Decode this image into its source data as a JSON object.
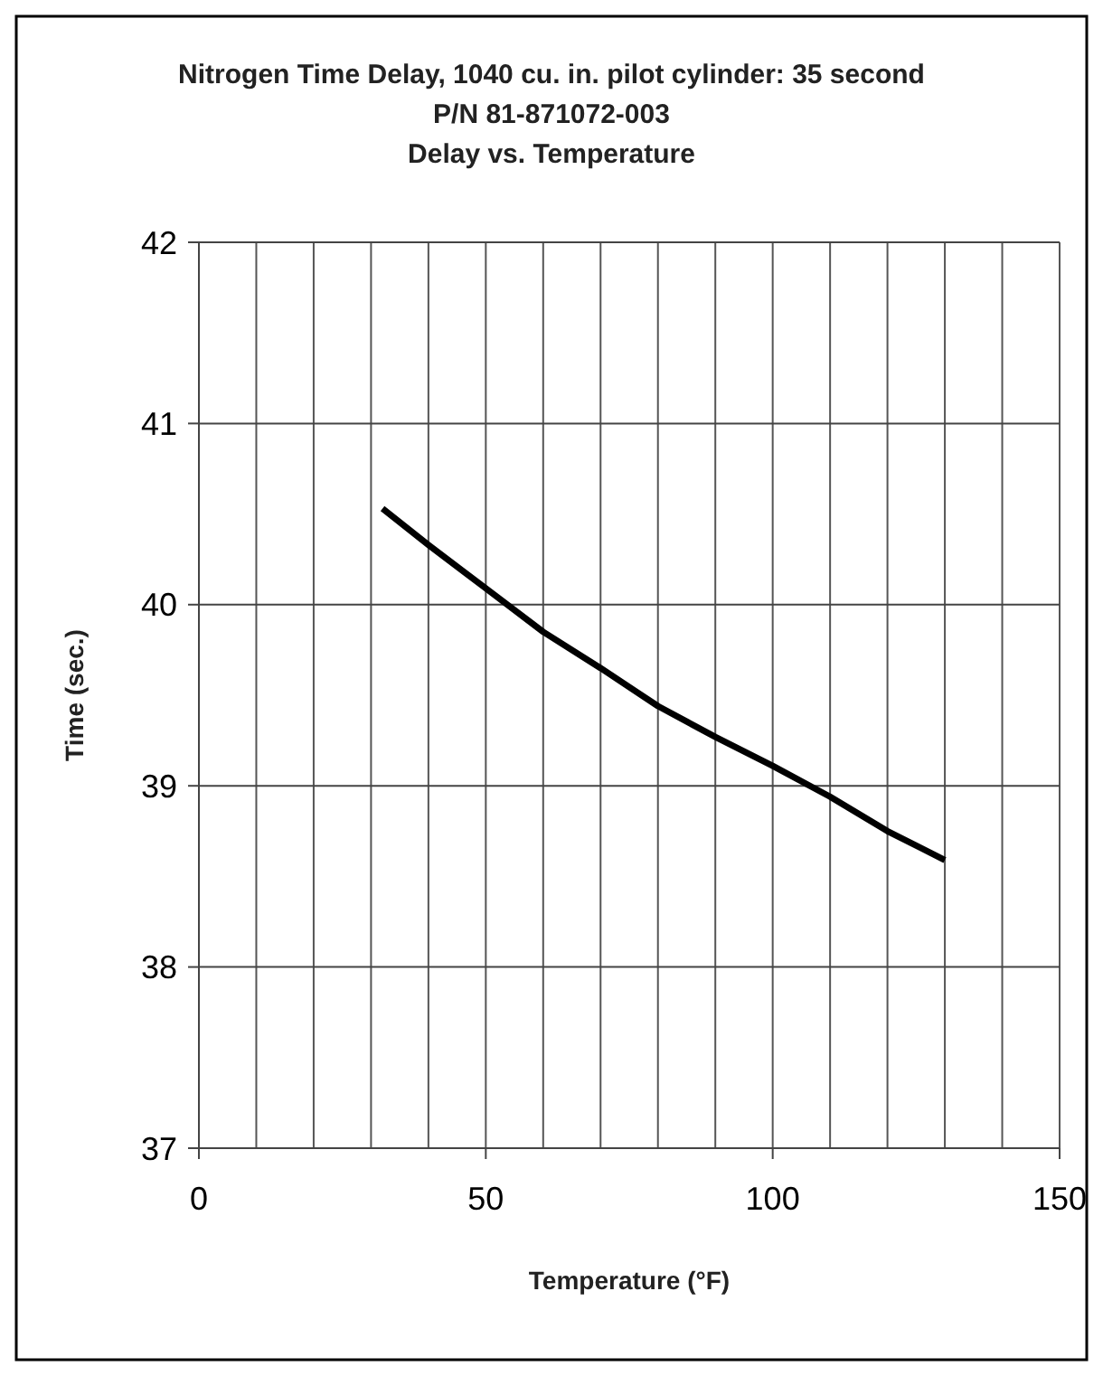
{
  "chart_data": {
    "type": "line",
    "title": "Nitrogen Time Delay, 1040 cu. in. pilot cylinder: 35 second\nP/N 81-871072-003\nDelay vs. Temperature",
    "xlabel": "Temperature (°F)",
    "ylabel": "Time (sec.)",
    "x": [
      32,
      40,
      50,
      60,
      70,
      80,
      90,
      100,
      110,
      120,
      130
    ],
    "series": [
      {
        "color": "#000000",
        "values": [
          40.53,
          40.33,
          40.09,
          39.85,
          39.65,
          39.44,
          39.27,
          39.11,
          38.94,
          38.75,
          38.59
        ]
      }
    ],
    "xlim": [
      0,
      150
    ],
    "xticks": [
      0,
      50,
      100,
      150
    ],
    "ylim": [
      37,
      42
    ],
    "yticks": [
      37,
      38,
      39,
      40,
      41,
      42
    ],
    "grid": true,
    "marker": "none",
    "line_style": "solid"
  }
}
